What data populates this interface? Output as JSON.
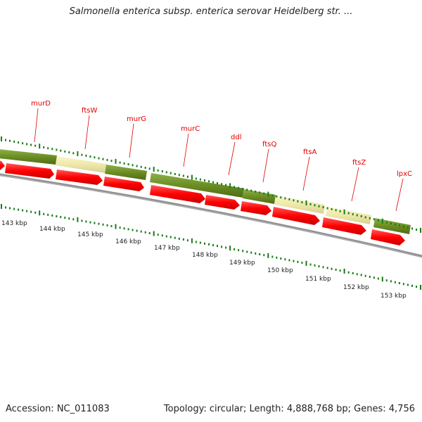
{
  "header": {
    "title": "Salmonella enterica subsp. enterica serovar Heidelberg str. ..."
  },
  "footer": {
    "accession": "Accession: NC_011083",
    "summary": "Topology: circular; Length: 4,888,768 bp; Genes: 4,756"
  },
  "map": {
    "genes": [
      {
        "name": "murD"
      },
      {
        "name": "ftsW"
      },
      {
        "name": "murG"
      },
      {
        "name": "murC"
      },
      {
        "name": "ddl"
      },
      {
        "name": "ftsQ"
      },
      {
        "name": "ftsA"
      },
      {
        "name": "ftsZ"
      },
      {
        "name": "lpxC"
      }
    ],
    "positions": [
      "143 kbp",
      "144 kbp",
      "145 kbp",
      "146 kbp",
      "147 kbp",
      "148 kbp",
      "149 kbp",
      "150 kbp",
      "151 kbp",
      "152 kbp",
      "153 kbp"
    ],
    "colors": {
      "gene_label": "#e00000",
      "olive_feature": "#6b8e23",
      "pale_feature": "#eee8aa",
      "cds_arrow": "#ff0000",
      "backbone": "#808080",
      "tick": "#1a7a1a"
    }
  }
}
